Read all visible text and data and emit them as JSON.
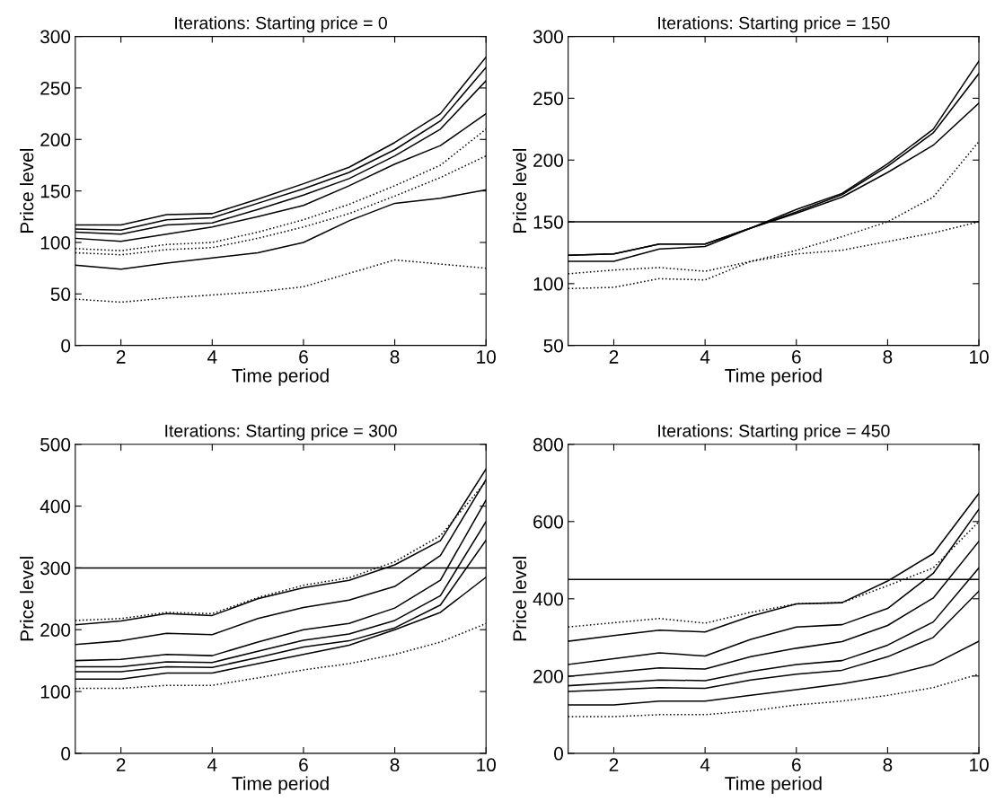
{
  "chart_data": [
    {
      "type": "line",
      "title": "Iterations: Starting price = 0",
      "xlabel": "Time period",
      "ylabel": "Price level",
      "x": [
        1,
        2,
        3,
        4,
        5,
        6,
        7,
        8,
        9,
        10
      ],
      "xlim": [
        1,
        10
      ],
      "xticks": [
        2,
        4,
        6,
        8,
        10
      ],
      "ylim": [
        0,
        300
      ],
      "yticks": [
        0,
        50,
        100,
        150,
        200,
        250,
        300
      ],
      "grid": false,
      "legend": false,
      "marker": "none",
      "series": [
        {
          "color": "#000000",
          "line_style": "solid",
          "values": [
            117,
            117,
            127,
            128,
            142,
            157,
            173,
            197,
            225,
            280
          ]
        },
        {
          "color": "#000000",
          "line_style": "solid",
          "values": [
            113,
            112,
            122,
            124,
            138,
            152,
            168,
            190,
            218,
            270
          ]
        },
        {
          "color": "#000000",
          "line_style": "solid",
          "values": [
            110,
            108,
            117,
            119,
            132,
            146,
            162,
            184,
            210,
            257
          ]
        },
        {
          "color": "#000000",
          "line_style": "solid",
          "values": [
            104,
            101,
            108,
            115,
            125,
            136,
            155,
            176,
            194,
            225
          ]
        },
        {
          "color": "#000000",
          "line_style": "dotted",
          "values": [
            94,
            92,
            98,
            100,
            110,
            122,
            137,
            155,
            175,
            210
          ]
        },
        {
          "color": "#000000",
          "line_style": "dotted",
          "values": [
            90,
            88,
            93,
            95,
            104,
            115,
            128,
            145,
            163,
            184
          ]
        },
        {
          "color": "#000000",
          "line_style": "solid",
          "values": [
            78,
            74,
            80,
            85,
            90,
            100,
            121,
            138,
            143,
            151
          ]
        },
        {
          "color": "#000000",
          "line_style": "dotted",
          "values": [
            45,
            42,
            46,
            49,
            52,
            57,
            70,
            83,
            79,
            75
          ]
        }
      ]
    },
    {
      "type": "line",
      "title": "Iterations: Starting price = 150",
      "xlabel": "Time period",
      "ylabel": "Price level",
      "x": [
        1,
        2,
        3,
        4,
        5,
        6,
        7,
        8,
        9,
        10
      ],
      "xlim": [
        1,
        10
      ],
      "xticks": [
        2,
        4,
        6,
        8,
        10
      ],
      "ylim": [
        50,
        300
      ],
      "yticks": [
        50,
        100,
        150,
        200,
        250,
        300
      ],
      "grid": false,
      "legend": false,
      "marker": "none",
      "ref_lines": [
        {
          "axis": "y",
          "value": 150,
          "color": "#000000"
        }
      ],
      "series": [
        {
          "color": "#000000",
          "line_style": "solid",
          "values": [
            118,
            118,
            128,
            130,
            145,
            160,
            173,
            197,
            225,
            280
          ]
        },
        {
          "color": "#000000",
          "line_style": "solid",
          "values": [
            123,
            124,
            132,
            132,
            145,
            158,
            172,
            195,
            222,
            270
          ]
        },
        {
          "color": "#000000",
          "line_style": "solid",
          "values": [
            123,
            124,
            132,
            132,
            145,
            157,
            170,
            190,
            212,
            246
          ]
        },
        {
          "color": "#000000",
          "line_style": "dotted",
          "values": [
            96,
            97,
            104,
            103,
            118,
            127,
            138,
            150,
            170,
            215
          ]
        },
        {
          "color": "#000000",
          "line_style": "dotted",
          "values": [
            108,
            111,
            113,
            110,
            118,
            124,
            127,
            134,
            141,
            150
          ]
        }
      ]
    },
    {
      "type": "line",
      "title": "Iterations: Starting price = 300",
      "xlabel": "Time period",
      "ylabel": "Price level",
      "x": [
        1,
        2,
        3,
        4,
        5,
        6,
        7,
        8,
        9,
        10
      ],
      "xlim": [
        1,
        10
      ],
      "xticks": [
        2,
        4,
        6,
        8,
        10
      ],
      "ylim": [
        0,
        500
      ],
      "yticks": [
        0,
        100,
        200,
        300,
        400,
        500
      ],
      "grid": false,
      "legend": false,
      "marker": "none",
      "ref_lines": [
        {
          "axis": "y",
          "value": 300,
          "color": "#000000"
        }
      ],
      "series": [
        {
          "color": "#000000",
          "line_style": "dotted",
          "values": [
            215,
            218,
            228,
            226,
            252,
            272,
            284,
            310,
            352,
            440
          ]
        },
        {
          "color": "#000000",
          "line_style": "solid",
          "values": [
            208,
            214,
            226,
            223,
            250,
            268,
            280,
            305,
            344,
            460
          ]
        },
        {
          "color": "#000000",
          "line_style": "solid",
          "values": [
            176,
            182,
            194,
            192,
            218,
            236,
            248,
            270,
            320,
            443
          ]
        },
        {
          "color": "#000000",
          "line_style": "solid",
          "values": [
            150,
            152,
            160,
            158,
            180,
            200,
            210,
            235,
            280,
            410
          ]
        },
        {
          "color": "#000000",
          "line_style": "solid",
          "values": [
            140,
            140,
            148,
            147,
            165,
            183,
            193,
            215,
            255,
            375
          ]
        },
        {
          "color": "#000000",
          "line_style": "solid",
          "values": [
            132,
            132,
            140,
            139,
            155,
            172,
            182,
            203,
            240,
            345
          ]
        },
        {
          "color": "#000000",
          "line_style": "solid",
          "values": [
            120,
            120,
            130,
            130,
            145,
            160,
            175,
            200,
            228,
            285
          ]
        },
        {
          "color": "#000000",
          "line_style": "dotted",
          "values": [
            105,
            105,
            110,
            110,
            122,
            135,
            145,
            160,
            180,
            210
          ]
        }
      ]
    },
    {
      "type": "line",
      "title": "Iterations: Starting price = 450",
      "xlabel": "Time period",
      "ylabel": "Price level",
      "x": [
        1,
        2,
        3,
        4,
        5,
        6,
        7,
        8,
        9,
        10
      ],
      "xlim": [
        1,
        10
      ],
      "xticks": [
        2,
        4,
        6,
        8,
        10
      ],
      "ylim": [
        0,
        800
      ],
      "yticks": [
        0,
        200,
        400,
        600,
        800
      ],
      "grid": false,
      "legend": false,
      "marker": "none",
      "ref_lines": [
        {
          "axis": "y",
          "value": 450,
          "color": "#000000"
        }
      ],
      "series": [
        {
          "color": "#000000",
          "line_style": "dotted",
          "values": [
            327,
            338,
            349,
            337,
            365,
            387,
            390,
            434,
            480,
            600
          ]
        },
        {
          "color": "#000000",
          "line_style": "solid",
          "values": [
            290,
            305,
            319,
            314,
            355,
            387,
            390,
            446,
            517,
            673
          ]
        },
        {
          "color": "#000000",
          "line_style": "solid",
          "values": [
            230,
            245,
            260,
            252,
            295,
            327,
            333,
            375,
            466,
            632
          ]
        },
        {
          "color": "#000000",
          "line_style": "solid",
          "values": [
            199,
            210,
            221,
            218,
            250,
            272,
            289,
            331,
            402,
            549
          ]
        },
        {
          "color": "#000000",
          "line_style": "solid",
          "values": [
            175,
            182,
            190,
            188,
            212,
            230,
            240,
            280,
            340,
            480
          ]
        },
        {
          "color": "#000000",
          "line_style": "solid",
          "values": [
            160,
            165,
            170,
            168,
            190,
            205,
            215,
            250,
            300,
            420
          ]
        },
        {
          "color": "#000000",
          "line_style": "solid",
          "values": [
            125,
            125,
            135,
            135,
            150,
            165,
            180,
            200,
            230,
            290
          ]
        },
        {
          "color": "#000000",
          "line_style": "dotted",
          "values": [
            95,
            95,
            100,
            100,
            110,
            125,
            135,
            150,
            170,
            205
          ]
        }
      ]
    }
  ]
}
